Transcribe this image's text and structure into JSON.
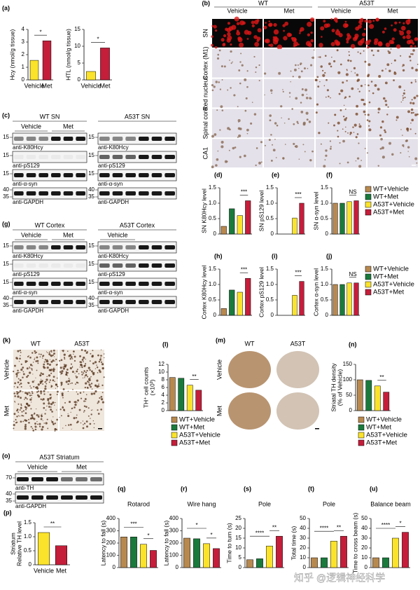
{
  "chart_data": [
    {
      "panel": "(a)",
      "type": "bar",
      "ylabel": "Hcy (nmol/g tissue)",
      "categories": [
        "Vehicle",
        "Met"
      ],
      "values": [
        1.55,
        3.1
      ],
      "colors": [
        "#fbe32b",
        "#c41e3a"
      ],
      "ylim": [
        0,
        4
      ],
      "yticks": [
        0,
        1,
        2,
        3,
        4
      ],
      "annotations": [
        {
          "text": "*",
          "bars": [
            0,
            1
          ]
        }
      ]
    },
    {
      "type": "bar",
      "ylabel": "HTL (nmol/g tissue)",
      "categories": [
        "Vehicle",
        "Met"
      ],
      "values": [
        2.5,
        9.5
      ],
      "colors": [
        "#fbe32b",
        "#c41e3a"
      ],
      "ylim": [
        0,
        15
      ],
      "yticks": [
        0,
        5,
        10,
        15
      ],
      "annotations": [
        {
          "text": "*",
          "bars": [
            0,
            1
          ]
        }
      ]
    },
    {
      "panel": "(d)",
      "type": "bar",
      "ylabel": "SN K80Hcy level",
      "categories": [
        null,
        null,
        null,
        null
      ],
      "values": [
        0.25,
        0.82,
        0.6,
        1.08
      ],
      "colors": [
        "#b8894f",
        "#1a7a3c",
        "#fbe32b",
        "#c41e3a"
      ],
      "ylim": [
        0,
        1.5
      ],
      "yticks": [
        0,
        0.5,
        {
          "value": 1,
          "label": "1.0"
        },
        1.5
      ],
      "annotations": [
        {
          "text": "***",
          "bars": [
            2,
            3
          ]
        }
      ]
    },
    {
      "panel": "(e)",
      "type": "bar",
      "ylabel": "SN pS129 level",
      "categories": [
        null,
        null,
        null,
        null
      ],
      "values": [
        0,
        0,
        0.52,
        1.0
      ],
      "colors": [
        "#b8894f",
        "#1a7a3c",
        "#fbe32b",
        "#c41e3a"
      ],
      "ylim": [
        0,
        1.5
      ],
      "yticks": [
        0,
        0.5,
        {
          "value": 1,
          "label": "1.0"
        },
        1.5
      ],
      "annotations": [
        {
          "text": "***",
          "bars": [
            2,
            3
          ]
        }
      ]
    },
    {
      "panel": "(f)",
      "type": "bar",
      "ylabel": "SN α-syn level",
      "categories": [
        null,
        null,
        null,
        null
      ],
      "values": [
        1.0,
        1.0,
        1.05,
        1.08
      ],
      "colors": [
        "#b8894f",
        "#1a7a3c",
        "#fbe32b",
        "#c41e3a"
      ],
      "ylim": [
        0,
        1.5
      ],
      "yticks": [
        0,
        0.5,
        {
          "value": 1,
          "label": "1.0"
        },
        1.5
      ],
      "annotations": [
        {
          "text": "NS",
          "bars": [
            2,
            3
          ]
        }
      ],
      "legend": [
        "WT+Vehicle",
        "WT+Met",
        "A53T+Vehicle",
        "A53T+Met"
      ]
    },
    {
      "panel": "(h)",
      "type": "bar",
      "ylabel": "Cortex K80Hcy level",
      "categories": [
        null,
        null,
        null,
        null
      ],
      "values": [
        0.22,
        0.82,
        0.75,
        1.2
      ],
      "colors": [
        "#b8894f",
        "#1a7a3c",
        "#fbe32b",
        "#c41e3a"
      ],
      "ylim": [
        0,
        1.5
      ],
      "yticks": [
        0,
        0.5,
        {
          "value": 1,
          "label": "1.0"
        },
        1.5
      ],
      "annotations": [
        {
          "text": "***",
          "bars": [
            2,
            3
          ]
        }
      ]
    },
    {
      "panel": "(i)",
      "type": "bar",
      "ylabel": "Cortex pS129 level",
      "categories": [
        null,
        null,
        null,
        null
      ],
      "values": [
        0,
        0,
        0.65,
        1.1
      ],
      "colors": [
        "#b8894f",
        "#1a7a3c",
        "#fbe32b",
        "#c41e3a"
      ],
      "ylim": [
        0,
        1.5
      ],
      "yticks": [
        0,
        0.5,
        {
          "value": 1,
          "label": "1.0"
        },
        1.5
      ],
      "annotations": [
        {
          "text": "***",
          "bars": [
            2,
            3
          ]
        }
      ]
    },
    {
      "panel": "(j)",
      "type": "bar",
      "ylabel": "Cortex α-syn level",
      "categories": [
        null,
        null,
        null,
        null
      ],
      "values": [
        1.0,
        1.0,
        1.05,
        1.05
      ],
      "colors": [
        "#b8894f",
        "#1a7a3c",
        "#fbe32b",
        "#c41e3a"
      ],
      "ylim": [
        0,
        1.5
      ],
      "yticks": [
        0,
        0.5,
        {
          "value": 1,
          "label": "1.0"
        },
        1.5
      ],
      "annotations": [
        {
          "text": "NS",
          "bars": [
            2,
            3
          ]
        }
      ],
      "legend": [
        "WT+Vehicle",
        "WT+Met",
        "A53T+Vehicle",
        "A53T+Met"
      ]
    },
    {
      "panel": "(l)",
      "type": "bar",
      "ylabel": [
        "TH⁺ cell counts",
        "(×10³)"
      ],
      "categories": [
        null,
        null,
        null,
        null
      ],
      "values": [
        8.6,
        8.4,
        6.6,
        5.3
      ],
      "colors": [
        "#b8894f",
        "#1a7a3c",
        "#fbe32b",
        "#c41e3a"
      ],
      "ylim": [
        0,
        12
      ],
      "yticks": [
        0,
        2,
        4,
        6,
        8,
        10,
        12
      ],
      "annotations": [
        {
          "text": "**",
          "bars": [
            2,
            3
          ]
        }
      ],
      "legend": [
        "WT+Vehicle",
        "WT+Met",
        "A53T+Vehicle",
        "A53T+Met"
      ]
    },
    {
      "panel": "(n)",
      "type": "bar",
      "ylabel": [
        "Striatal TH density",
        "(% of Vehicle)"
      ],
      "categories": [
        null,
        null,
        null,
        null
      ],
      "values": [
        100,
        98,
        80,
        60
      ],
      "colors": [
        "#b8894f",
        "#1a7a3c",
        "#fbe32b",
        "#c41e3a"
      ],
      "ylim": [
        0,
        150
      ],
      "yticks": [
        0,
        50,
        100,
        150
      ],
      "annotations": [
        {
          "text": "**",
          "bars": [
            2,
            3
          ]
        }
      ],
      "legend": [
        "WT+Vehicle",
        "WT+Met",
        "A53T+Vehicle",
        "A53T+Met"
      ]
    },
    {
      "panel": "(p)",
      "type": "bar",
      "ylabel": [
        "Striatum",
        "Relative TH level"
      ],
      "categories": [
        "Vehicle",
        "Met"
      ],
      "values": [
        1.15,
        0.68
      ],
      "colors": [
        "#fbe32b",
        "#c41e3a"
      ],
      "ylim": [
        0,
        1.5
      ],
      "yticks": [
        0,
        0.5,
        {
          "value": 1,
          "label": "1.0"
        },
        1.5
      ],
      "annotations": [
        {
          "text": "**",
          "bars": [
            0,
            1
          ]
        }
      ]
    },
    {
      "panel": "(q)",
      "type": "bar",
      "title": "Rotarod",
      "ylabel": "Latency to fall (s)",
      "categories": [
        null,
        null,
        null,
        null
      ],
      "values": [
        250,
        250,
        190,
        140
      ],
      "colors": [
        "#b8894f",
        "#1a7a3c",
        "#fbe32b",
        "#c41e3a"
      ],
      "ylim": [
        0,
        400
      ],
      "yticks": [
        0,
        100,
        200,
        300,
        400
      ],
      "annotations": [
        {
          "text": "***",
          "bars": [
            0,
            2
          ]
        },
        {
          "text": "*",
          "bars": [
            2,
            3
          ]
        }
      ]
    },
    {
      "panel": "(r)",
      "type": "bar",
      "title": "Wire hang",
      "ylabel": "Latency to fall (s)",
      "categories": [
        null,
        null,
        null,
        null
      ],
      "values": [
        240,
        235,
        195,
        155
      ],
      "colors": [
        "#b8894f",
        "#1a7a3c",
        "#fbe32b",
        "#c41e3a"
      ],
      "ylim": [
        0,
        400
      ],
      "yticks": [
        0,
        100,
        200,
        300,
        400
      ],
      "annotations": [
        {
          "text": "*",
          "bars": [
            0,
            2
          ]
        },
        {
          "text": "*",
          "bars": [
            2,
            3
          ]
        }
      ]
    },
    {
      "panel": "(s)",
      "type": "bar",
      "title": "Pole",
      "ylabel": "Time to turn (s)",
      "categories": [
        null,
        null,
        null,
        null
      ],
      "values": [
        4,
        4.5,
        11,
        16
      ],
      "colors": [
        "#b8894f",
        "#1a7a3c",
        "#fbe32b",
        "#c41e3a"
      ],
      "ylim": [
        0,
        25
      ],
      "yticks": [
        0,
        5,
        10,
        15,
        20,
        25
      ],
      "annotations": [
        {
          "text": "****",
          "bars": [
            0,
            2
          ]
        },
        {
          "text": "**",
          "bars": [
            2,
            3
          ]
        }
      ]
    },
    {
      "panel": "(t)",
      "type": "bar",
      "title": "Pole",
      "ylabel": "Total time (s)",
      "categories": [
        null,
        null,
        null,
        null
      ],
      "values": [
        10,
        10,
        27,
        32
      ],
      "colors": [
        "#b8894f",
        "#1a7a3c",
        "#fbe32b",
        "#c41e3a"
      ],
      "ylim": [
        0,
        50
      ],
      "yticks": [
        0,
        10,
        20,
        30,
        40,
        50
      ],
      "annotations": [
        {
          "text": "****",
          "bars": [
            0,
            2
          ]
        },
        {
          "text": "**",
          "bars": [
            2,
            3
          ]
        }
      ]
    },
    {
      "panel": "(u)",
      "type": "bar",
      "title": "Balance beam",
      "ylabel": "Time to cross beam (s)",
      "categories": [
        null,
        null,
        null,
        null
      ],
      "values": [
        10,
        10,
        30,
        36
      ],
      "colors": [
        "#b8894f",
        "#1a7a3c",
        "#fbe32b",
        "#c41e3a"
      ],
      "ylim": [
        0,
        50
      ],
      "yticks": [
        0,
        10,
        20,
        30,
        40,
        50
      ],
      "annotations": [
        {
          "text": "****",
          "bars": [
            0,
            2
          ]
        },
        {
          "text": "*",
          "bars": [
            2,
            3
          ]
        }
      ]
    }
  ],
  "blots": [
    {
      "panel": "(c)",
      "title": "WT SN",
      "groups": [
        "Vehicle",
        "Met"
      ],
      "rows": [
        {
          "label": "anti-K80Hcy",
          "markers": [
            "15"
          ]
        },
        {
          "label": "anti-pS129",
          "markers": [
            "15"
          ]
        },
        {
          "label": "anti-α-syn",
          "markers": [
            "15"
          ]
        },
        {
          "label": "anti-GAPDH",
          "markers": [
            "40",
            "35"
          ]
        }
      ]
    },
    {
      "title": "A53T SN",
      "groups": [],
      "rows": [
        {
          "label": "anti-K80Hcy",
          "markers": [
            "15"
          ]
        },
        {
          "label": "anti-pS129",
          "markers": [
            "15"
          ]
        },
        {
          "label": "anti-α-syn",
          "markers": [
            "15"
          ]
        },
        {
          "label": "anti-GAPDH",
          "markers": [
            "40",
            "35"
          ]
        }
      ]
    },
    {
      "panel": "(g)",
      "title": "WT Cortex",
      "groups": [
        "Vehicle",
        "Met"
      ],
      "rows": [
        {
          "label": "anti-K80Hcy",
          "markers": [
            "15"
          ]
        },
        {
          "label": "anti-pS129",
          "markers": [
            "15"
          ]
        },
        {
          "label": "anti-α-syn",
          "markers": [
            "15"
          ]
        },
        {
          "label": "anti-GAPDH",
          "markers": [
            "40",
            "35"
          ]
        }
      ]
    },
    {
      "title": "A53T Cortex",
      "groups": [
        "Vehicle"
      ],
      "rows": [
        {
          "label": "anti-K80Hcy",
          "markers": [
            "15"
          ]
        },
        {
          "label": "anti-pS129",
          "markers": [
            "15"
          ]
        },
        {
          "label": "anti-α-syn",
          "markers": [
            "15"
          ]
        },
        {
          "label": "anti-GAPDH",
          "markers": [
            "40",
            "35"
          ]
        }
      ]
    },
    {
      "panel": "(o)",
      "title": "A53T  Striatum",
      "groups": [
        "Vehicle",
        "Met"
      ],
      "rows": [
        {
          "label": "anti-TH",
          "markers": [
            "70"
          ]
        },
        {
          "label": "anti-GAPDH",
          "markers": [
            "40",
            "35"
          ]
        }
      ]
    }
  ],
  "images": [
    {
      "panel": "(b)",
      "header": [
        "WT",
        "A53T"
      ],
      "columns": [
        "Vehicle",
        "Met",
        "Vehicle",
        "Met"
      ],
      "rows": [
        "SN",
        "Cortex (M1)",
        "Red nucleus",
        "Spinal cord",
        "CA1"
      ]
    },
    {
      "panel": "(k)",
      "header": [],
      "columns": [
        "WT",
        "A53T"
      ],
      "rows": [
        "Vehicle",
        "Met"
      ]
    },
    {
      "panel": "(m)",
      "header": [],
      "columns": [
        "WT",
        "A53T"
      ],
      "rows": [
        "Vehicle",
        "Met"
      ]
    }
  ],
  "watermark": "知乎 @逻辑神经科学"
}
